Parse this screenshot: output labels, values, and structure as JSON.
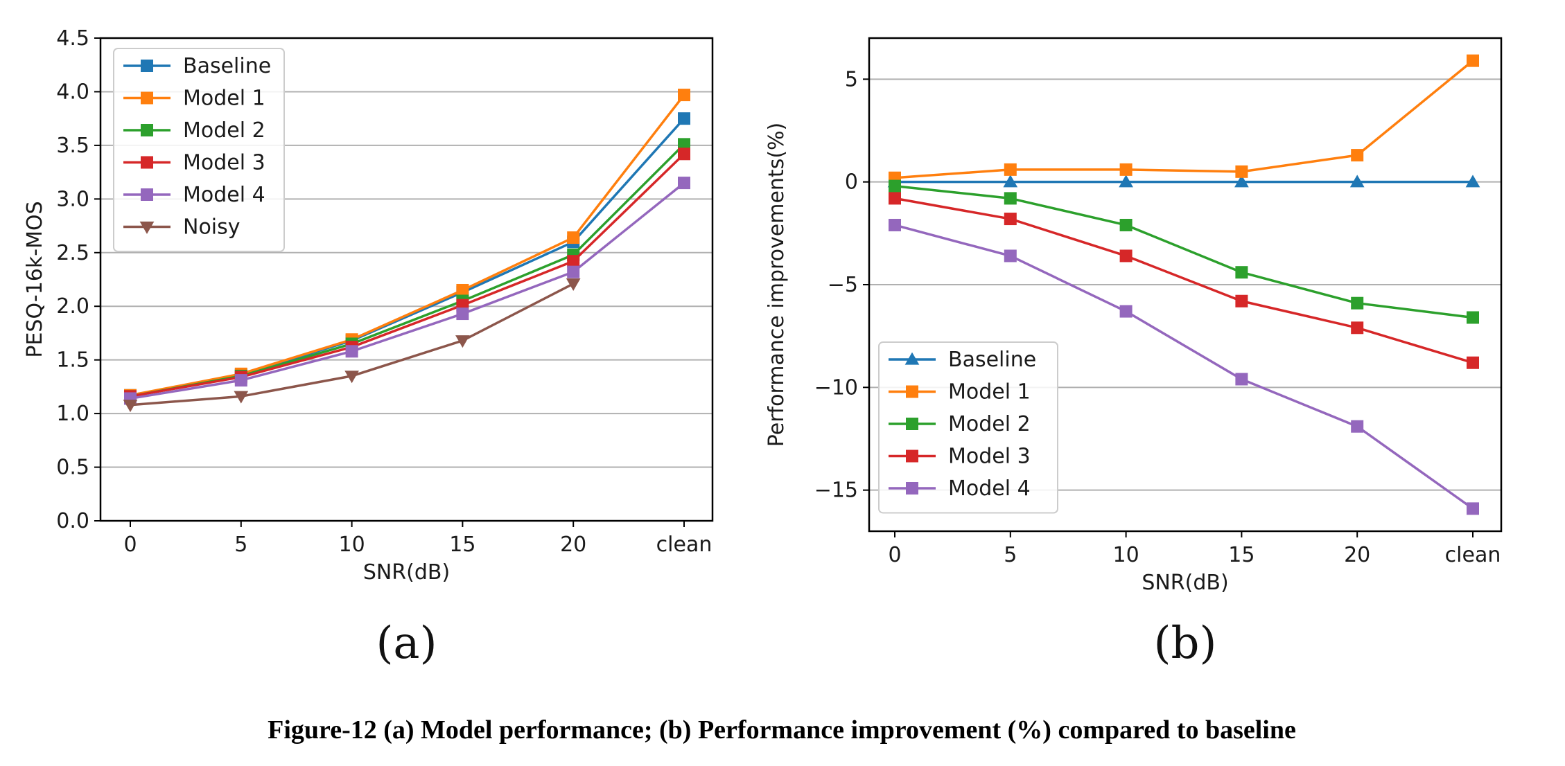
{
  "caption": "Figure-12 (a) Model performance; (b) Performance improvement (%) compared to baseline",
  "chart_data": [
    {
      "type": "line",
      "panel_label": "(a)",
      "title": "",
      "xlabel": "SNR(dB)",
      "ylabel": "PESQ-16k-MOS",
      "categories": [
        "0",
        "5",
        "10",
        "15",
        "20",
        "clean"
      ],
      "ylim": [
        0,
        4.5
      ],
      "yticks": [
        0.0,
        0.5,
        1.0,
        1.5,
        2.0,
        2.5,
        3.0,
        3.5,
        4.0,
        4.5
      ],
      "ytick_labels": [
        "0.0",
        "0.5",
        "1.0",
        "1.5",
        "2.0",
        "2.5",
        "3.0",
        "3.5",
        "4.0",
        "4.5"
      ],
      "grid": "horizontal",
      "legend_position": "top-left",
      "series": [
        {
          "name": "Baseline",
          "color": "#1f77b4",
          "marker": "square",
          "values": [
            1.17,
            1.36,
            1.68,
            2.13,
            2.6,
            3.75
          ]
        },
        {
          "name": "Model 1",
          "color": "#ff7f0e",
          "marker": "square",
          "values": [
            1.17,
            1.37,
            1.69,
            2.15,
            2.64,
            3.97
          ]
        },
        {
          "name": "Model 2",
          "color": "#2ca02c",
          "marker": "square",
          "values": [
            1.16,
            1.35,
            1.65,
            2.05,
            2.48,
            3.51
          ]
        },
        {
          "name": "Model 3",
          "color": "#d62728",
          "marker": "square",
          "values": [
            1.16,
            1.34,
            1.62,
            2.01,
            2.42,
            3.42
          ]
        },
        {
          "name": "Model 4",
          "color": "#9467bd",
          "marker": "square",
          "values": [
            1.14,
            1.31,
            1.58,
            1.93,
            2.32,
            3.15
          ]
        },
        {
          "name": "Noisy",
          "color": "#8c564b",
          "marker": "triangle-down",
          "values": [
            1.08,
            1.16,
            1.35,
            1.68,
            2.21,
            null
          ]
        }
      ]
    },
    {
      "type": "line",
      "panel_label": "(b)",
      "title": "",
      "xlabel": "SNR(dB)",
      "ylabel": "Performance improvements(%)",
      "categories": [
        "0",
        "5",
        "10",
        "15",
        "20",
        "clean"
      ],
      "ylim": [
        -17,
        7
      ],
      "yticks": [
        5,
        0,
        -5,
        -10,
        -15
      ],
      "ytick_labels": [
        "5",
        "0",
        "−5",
        "−10",
        "−15"
      ],
      "grid": "horizontal",
      "legend_position": "bottom-left",
      "series": [
        {
          "name": "Baseline",
          "color": "#1f77b4",
          "marker": "triangle-up",
          "values": [
            0,
            0,
            0,
            0,
            0,
            0
          ]
        },
        {
          "name": "Model 1",
          "color": "#ff7f0e",
          "marker": "square",
          "values": [
            0.2,
            0.6,
            0.6,
            0.5,
            1.3,
            5.9
          ]
        },
        {
          "name": "Model 2",
          "color": "#2ca02c",
          "marker": "square",
          "values": [
            -0.2,
            -0.8,
            -2.1,
            -4.4,
            -5.9,
            -6.6
          ]
        },
        {
          "name": "Model 3",
          "color": "#d62728",
          "marker": "square",
          "values": [
            -0.8,
            -1.8,
            -3.6,
            -5.8,
            -7.1,
            -8.8
          ]
        },
        {
          "name": "Model 4",
          "color": "#9467bd",
          "marker": "square",
          "values": [
            -2.1,
            -3.6,
            -6.3,
            -9.6,
            -11.9,
            -15.9
          ]
        }
      ]
    }
  ]
}
